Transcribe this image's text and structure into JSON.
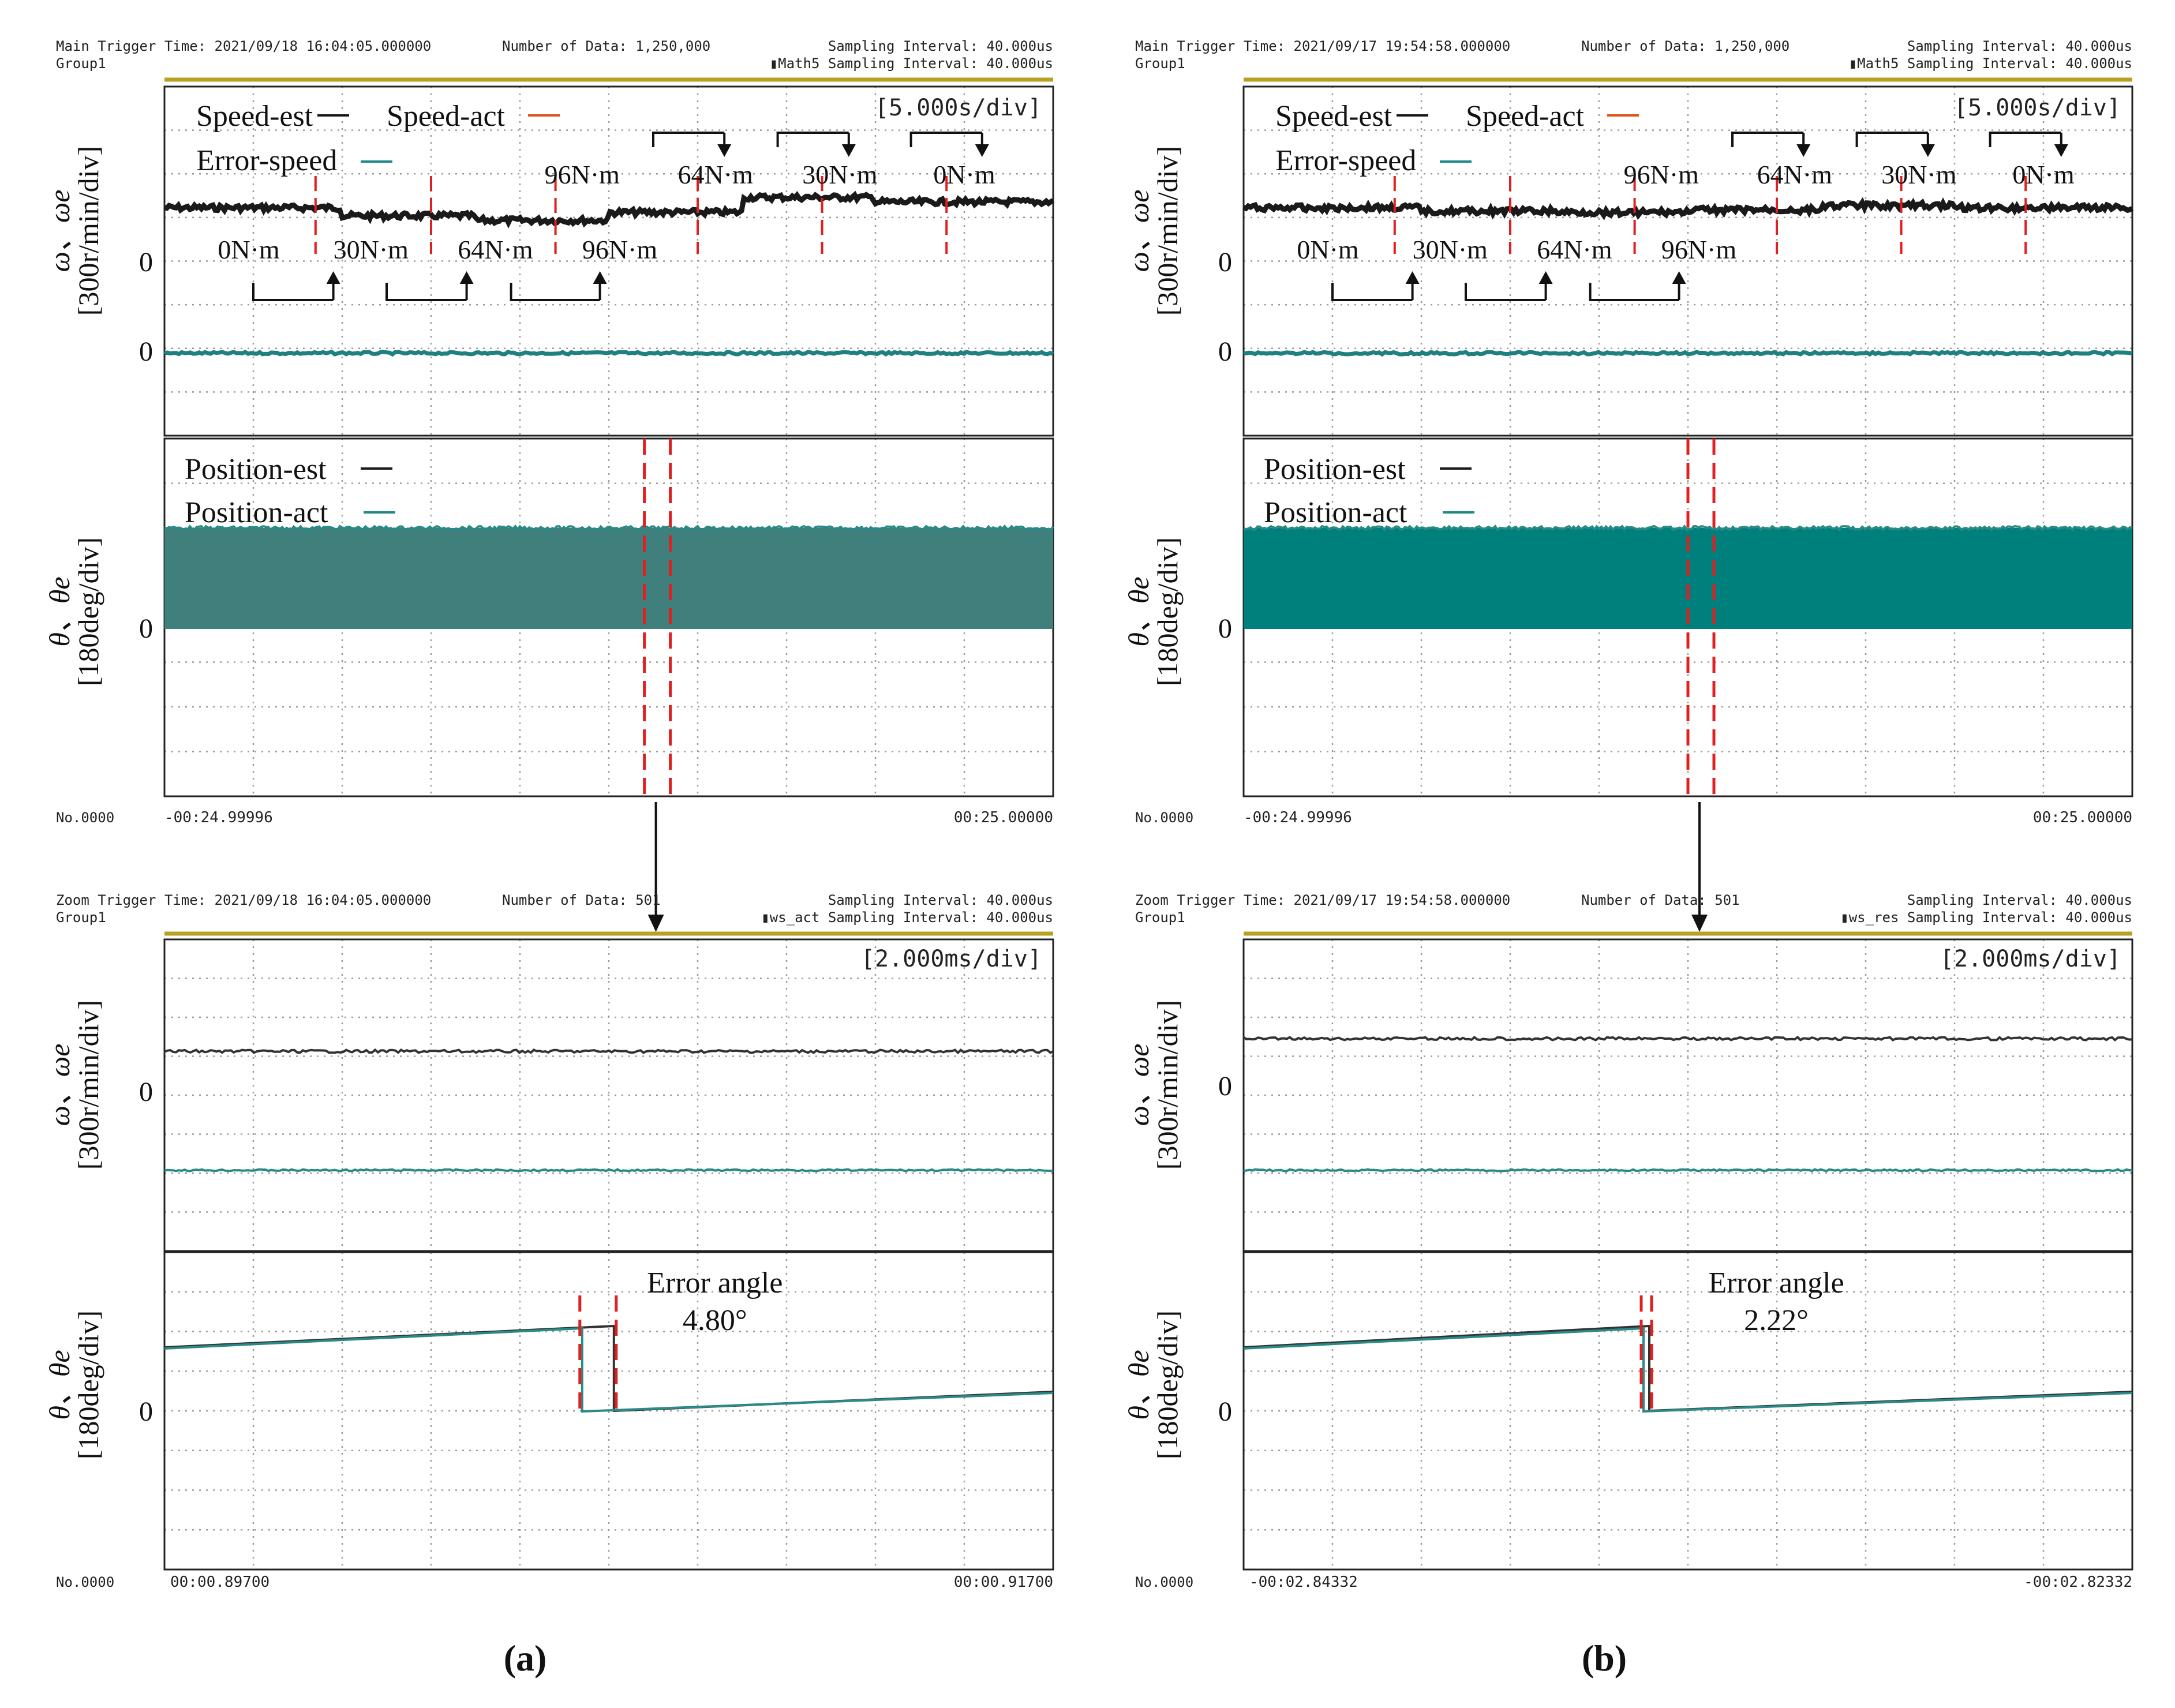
{
  "panels": [
    {
      "id": "a",
      "caption": "(a)",
      "main_header": {
        "trigger": "Main Trigger Time: 2021/09/18 16:04:05.000000",
        "num_data": "Number of Data: 1,250,000",
        "sampling1": "Sampling Interval:  40.000us",
        "group": "Group1",
        "math": "Math5 Sampling Interval:  40.000us"
      },
      "main_timescale": "[5.000s/div]",
      "main_footer": {
        "no": "No.0000",
        "left": "-00:24.99996",
        "right": "00:25.00000"
      },
      "zoom_header": {
        "trigger": "Zoom Trigger Time: 2021/09/18 16:04:05.000000",
        "num_data": "Number of Data: 501",
        "sampling1": "Sampling Interval:  40.000us",
        "group": "Group1",
        "math": "ws_act Sampling Interval:  40.000us"
      },
      "zoom_timescale": "[2.000ms/div]",
      "zoom_footer": {
        "no": "No.0000",
        "left": "00:00.89700",
        "right": "00:00.91700"
      },
      "error_angle": {
        "label": "Error angle",
        "value": "4.80°"
      }
    },
    {
      "id": "b",
      "caption": "(b)",
      "main_header": {
        "trigger": "Main Trigger Time: 2021/09/17 19:54:58.000000",
        "num_data": "Number of Data: 1,250,000",
        "sampling1": "Sampling Interval:  40.000us",
        "group": "Group1",
        "math": "Math5 Sampling Interval:  40.000us"
      },
      "main_timescale": "[5.000s/div]",
      "main_footer": {
        "no": "No.0000",
        "left": "-00:24.99996",
        "right": "00:25.00000"
      },
      "zoom_header": {
        "trigger": "Zoom Trigger Time: 2021/09/17 19:54:58.000000",
        "num_data": "Number of Data: 501",
        "sampling1": "Sampling Interval:  40.000us",
        "group": "Group1",
        "math": "ws_res Sampling Interval:  40.000us"
      },
      "zoom_timescale": "[2.000ms/div]",
      "zoom_footer": {
        "no": "No.0000",
        "left": "-00:02.84332",
        "right": "-00:02.82332"
      },
      "error_angle": {
        "label": "Error angle",
        "value": "2.22°"
      }
    }
  ],
  "legends": {
    "speed_est": "Speed-est",
    "speed_act": "Speed-act",
    "error_speed": "Error-speed",
    "position_est": "Position-est",
    "position_act": "Position-act"
  },
  "axis_labels": {
    "speed_symbol": "ω、ωe",
    "speed_unit": "[300r/min/div]",
    "pos_symbol": "θ、θe",
    "pos_unit": "[180deg/div]",
    "zero": "0"
  },
  "load_labels": [
    "0N·m",
    "30N·m",
    "64N·m",
    "96N·m"
  ],
  "load_labels_down": [
    "96N·m",
    "64N·m",
    "30N·m",
    "0N·m"
  ],
  "colors": {
    "speed_est": "#1a1a1a",
    "speed_act": "#d9541e",
    "error_speed": "#1f8a86",
    "position_act_a": "#3f7f7c",
    "position_act_b": "#00807c",
    "marker": "#e02020"
  },
  "chart_data": [
    {
      "panel": "a-main",
      "type": "line",
      "xlabel": "",
      "ylabel": "ω、ωe [300r/min/div]",
      "x_range": [
        "-00:24.99996",
        "00:25.00000"
      ],
      "series": [
        {
          "name": "Speed-est",
          "x": [
            -25,
            -20,
            -15,
            -10,
            -5,
            0,
            5,
            10,
            15,
            20,
            25
          ],
          "values": [
            610,
            600,
            575,
            560,
            580,
            590,
            610,
            640,
            640,
            625,
            620
          ]
        },
        {
          "name": "Error-speed",
          "x": [
            -25,
            25
          ],
          "values": [
            0,
            0
          ]
        }
      ]
    },
    {
      "panel": "b-main",
      "type": "line",
      "xlabel": "",
      "ylabel": "ω、ωe [300r/min/div]",
      "x_range": [
        "-00:24.99996",
        "00:25.00000"
      ],
      "series": [
        {
          "name": "Speed-est",
          "x": [
            -25,
            -20,
            -15,
            -10,
            -5,
            0,
            5,
            10,
            15,
            20,
            25
          ],
          "values": [
            620,
            615,
            605,
            600,
            605,
            605,
            610,
            620,
            620,
            615,
            615
          ]
        },
        {
          "name": "Error-speed",
          "x": [
            -25,
            25
          ],
          "values": [
            0,
            0
          ]
        }
      ]
    },
    {
      "panel": "a-zoom",
      "type": "line",
      "xlabel": "",
      "ylabel": "θ、θe [180deg/div]",
      "series": [
        {
          "name": "Position-est",
          "x": [
            0,
            4.3,
            4.3,
            10
          ],
          "values": [
            150,
            180,
            0,
            30
          ]
        },
        {
          "name": "Position-act",
          "x": [
            0,
            4.0,
            4.0,
            10
          ],
          "values": [
            150,
            178,
            0,
            31
          ]
        }
      ],
      "error_angle_deg": 4.8
    },
    {
      "panel": "b-zoom",
      "type": "line",
      "xlabel": "",
      "ylabel": "θ、θe [180deg/div]",
      "series": [
        {
          "name": "Position-est",
          "x": [
            0,
            4.45,
            4.45,
            10
          ],
          "values": [
            150,
            180,
            0,
            30
          ]
        },
        {
          "name": "Position-act",
          "x": [
            0,
            4.4,
            4.4,
            10
          ],
          "values": [
            150,
            179,
            0,
            30
          ]
        }
      ],
      "error_angle_deg": 2.22
    }
  ]
}
